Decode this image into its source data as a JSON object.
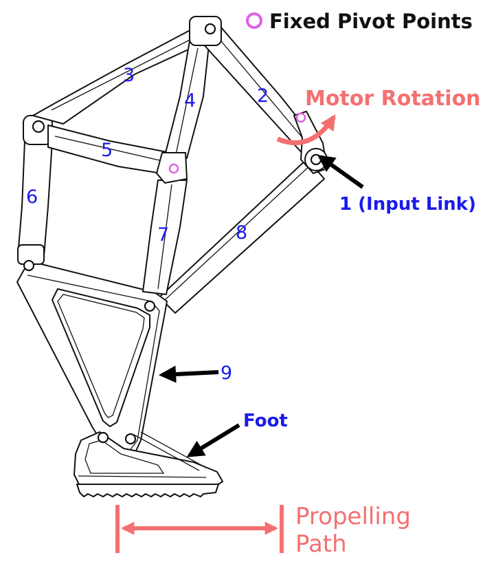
{
  "legend": {
    "label": "Fixed Pivot Points",
    "color": "#e060e8"
  },
  "motor": {
    "label": "Motor Rotation",
    "color": "#f47070"
  },
  "input_link_label": "1 (Input Link)",
  "foot_label": "Foot",
  "link_numbers": {
    "l2": "2",
    "l3": "3",
    "l4": "4",
    "l5": "5",
    "l6": "6",
    "l7": "7",
    "l8": "8",
    "l9": "9"
  },
  "path": {
    "line1": "Propelling",
    "line2": "Path",
    "color": "#f47070"
  },
  "colors": {
    "label_blue": "#1a1aee",
    "line": "#111111",
    "arrow": "#000000"
  }
}
